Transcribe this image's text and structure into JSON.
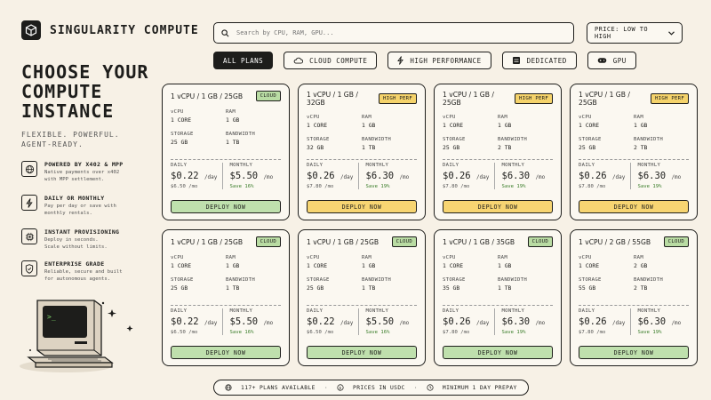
{
  "brand": {
    "name": "SINGULARITY COMPUTE"
  },
  "search": {
    "placeholder": "Search by CPU, RAM, GPU..."
  },
  "sort": {
    "label": "PRICE: LOW TO HIGH"
  },
  "tabs": [
    {
      "label": "ALL PLANS",
      "icon": "none",
      "active": true
    },
    {
      "label": "CLOUD COMPUTE",
      "icon": "cloud-icon",
      "active": false
    },
    {
      "label": "HIGH PERFORMANCE",
      "icon": "bolt-icon",
      "active": false
    },
    {
      "label": "DEDICATED",
      "icon": "server-icon",
      "active": false
    },
    {
      "label": "GPU",
      "icon": "gamepad-icon",
      "active": false
    }
  ],
  "hero": {
    "title": "CHOOSE YOUR\nCOMPUTE\nINSTANCE",
    "tagline": "FLEXIBLE. POWERFUL.\nAGENT-READY."
  },
  "features": [
    {
      "icon": "globe-icon",
      "title": "POWERED BY X402 & MPP",
      "desc": "Native payments over x402\nwith MPP settlement."
    },
    {
      "icon": "bolt-icon",
      "title": "DAILY OR MONTHLY",
      "desc": "Pay per day or save with\nmonthly rentals."
    },
    {
      "icon": "chip-icon",
      "title": "INSTANT PROVISIONING",
      "desc": "Deploy in seconds.\nScale without limits."
    },
    {
      "icon": "shield-icon",
      "title": "ENTERPRISE GRADE",
      "desc": "Reliable, secure and built\nfor autonomous agents."
    }
  ],
  "labels": {
    "vcpu": "vCPU",
    "ram": "RAM",
    "storage": "STORAGE",
    "bandwidth": "BANDWIDTH",
    "daily": "DAILY",
    "monthly": "MONTHLY",
    "deploy": "DEPLOY NOW",
    "per_day": "/day",
    "per_mo": "/mo"
  },
  "plans": [
    {
      "title": "1 vCPU / 1 GB / 25GB",
      "badge": "CLOUD",
      "vcpu": "1 CORE",
      "ram": "1 GB",
      "storage": "25 GB",
      "bandwidth": "1 TB",
      "daily": "$0.22",
      "daily_sub": "$6.50 /mo",
      "monthly": "$5.50",
      "save": "Save 16%",
      "variant": "cloud"
    },
    {
      "title": "1 vCPU / 1 GB / 32GB",
      "badge": "HIGH PERF",
      "vcpu": "1 CORE",
      "ram": "1 GB",
      "storage": "32 GB",
      "bandwidth": "1 TB",
      "daily": "$0.26",
      "daily_sub": "$7.80 /mo",
      "monthly": "$6.30",
      "save": "Save 19%",
      "variant": "perf"
    },
    {
      "title": "1 vCPU / 1 GB / 25GB",
      "badge": "HIGH PERF",
      "vcpu": "1 CORE",
      "ram": "1 GB",
      "storage": "25 GB",
      "bandwidth": "2 TB",
      "daily": "$0.26",
      "daily_sub": "$7.80 /mo",
      "monthly": "$6.30",
      "save": "Save 19%",
      "variant": "perf"
    },
    {
      "title": "1 vCPU / 1 GB / 25GB",
      "badge": "HIGH PERF",
      "vcpu": "1 CORE",
      "ram": "1 GB",
      "storage": "25 GB",
      "bandwidth": "2 TB",
      "daily": "$0.26",
      "daily_sub": "$7.80 /mo",
      "monthly": "$6.30",
      "save": "Save 19%",
      "variant": "perf"
    },
    {
      "title": "1 vCPU / 1 GB / 25GB",
      "badge": "CLOUD",
      "vcpu": "1 CORE",
      "ram": "1 GB",
      "storage": "25 GB",
      "bandwidth": "1 TB",
      "daily": "$0.22",
      "daily_sub": "$6.50 /mo",
      "monthly": "$5.50",
      "save": "Save 16%",
      "variant": "cloud"
    },
    {
      "title": "1 vCPU / 1 GB / 25GB",
      "badge": "CLOUD",
      "vcpu": "1 CORE",
      "ram": "1 GB",
      "storage": "25 GB",
      "bandwidth": "1 TB",
      "daily": "$0.22",
      "daily_sub": "$6.50 /mo",
      "monthly": "$5.50",
      "save": "Save 16%",
      "variant": "cloud"
    },
    {
      "title": "1 vCPU / 1 GB / 35GB",
      "badge": "CLOUD",
      "vcpu": "1 CORE",
      "ram": "1 GB",
      "storage": "35 GB",
      "bandwidth": "1 TB",
      "daily": "$0.26",
      "daily_sub": "$7.80 /mo",
      "monthly": "$6.30",
      "save": "Save 19%",
      "variant": "cloud"
    },
    {
      "title": "1 vCPU / 2 GB / 55GB",
      "badge": "CLOUD",
      "vcpu": "1 CORE",
      "ram": "2 GB",
      "storage": "55 GB",
      "bandwidth": "2 TB",
      "daily": "$0.26",
      "daily_sub": "$7.80 /mo",
      "monthly": "$6.30",
      "save": "Save 19%",
      "variant": "cloud"
    }
  ],
  "footer": {
    "plans": "117+ PLANS AVAILABLE",
    "currency": "PRICES IN USDC",
    "minimum": "MINIMUM 1 DAY PREPAY"
  },
  "colors": {
    "background": "#f7f1e6",
    "ink": "#1d1d1b",
    "cloud_badge": "#b9dca3",
    "cloud_button": "#bfe0ad",
    "perf_badge": "#f5d36b",
    "perf_button": "#f7d572",
    "save_green": "#3a7d2a"
  }
}
